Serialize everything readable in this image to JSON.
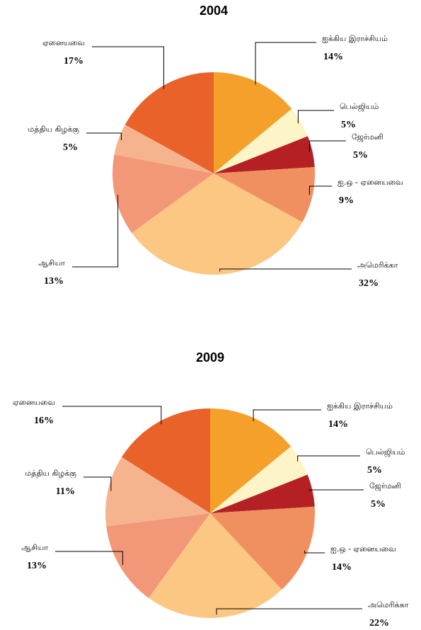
{
  "chart_data": [
    {
      "type": "pie",
      "title": "2004",
      "categories": [
        "ஐக்கிய இராச்சியம்",
        "பெல்ஜியம்",
        "ஜேர்மனி",
        "ஐ.ஒ - ஏனையவை",
        "அமெரிக்கா",
        "ஆசியா",
        "மத்திய கிழக்கு",
        "ஏனையவை"
      ],
      "values": [
        14,
        5,
        5,
        9,
        32,
        13,
        5,
        17
      ],
      "value_labels": [
        "14%",
        "5%",
        "5%",
        "9%",
        "32%",
        "13%",
        "5%",
        "17%"
      ],
      "colors": [
        "#f5a02a",
        "#fdf5c8",
        "#b52025",
        "#f09060",
        "#fcc683",
        "#f29878",
        "#f5b48e",
        "#e8622a"
      ]
    },
    {
      "type": "pie",
      "title": "2009",
      "categories": [
        "ஐக்கிய இராச்சியம்",
        "பெல்ஜியம்",
        "ஜேர்மனி",
        "ஐ.ஒ - ஏனையவை",
        "அமெரிக்கா",
        "ஆசியா",
        "மத்திய கிழக்கு",
        "ஏனையவை"
      ],
      "values": [
        14,
        5,
        5,
        14,
        22,
        13,
        11,
        16
      ],
      "value_labels": [
        "14%",
        "5%",
        "5%",
        "14%",
        "22%",
        "13%",
        "11%",
        "16%"
      ],
      "colors": [
        "#f5a02a",
        "#fdf5c8",
        "#b52025",
        "#f09060",
        "#fcc683",
        "#f29878",
        "#f5b48e",
        "#e8622a"
      ]
    }
  ]
}
